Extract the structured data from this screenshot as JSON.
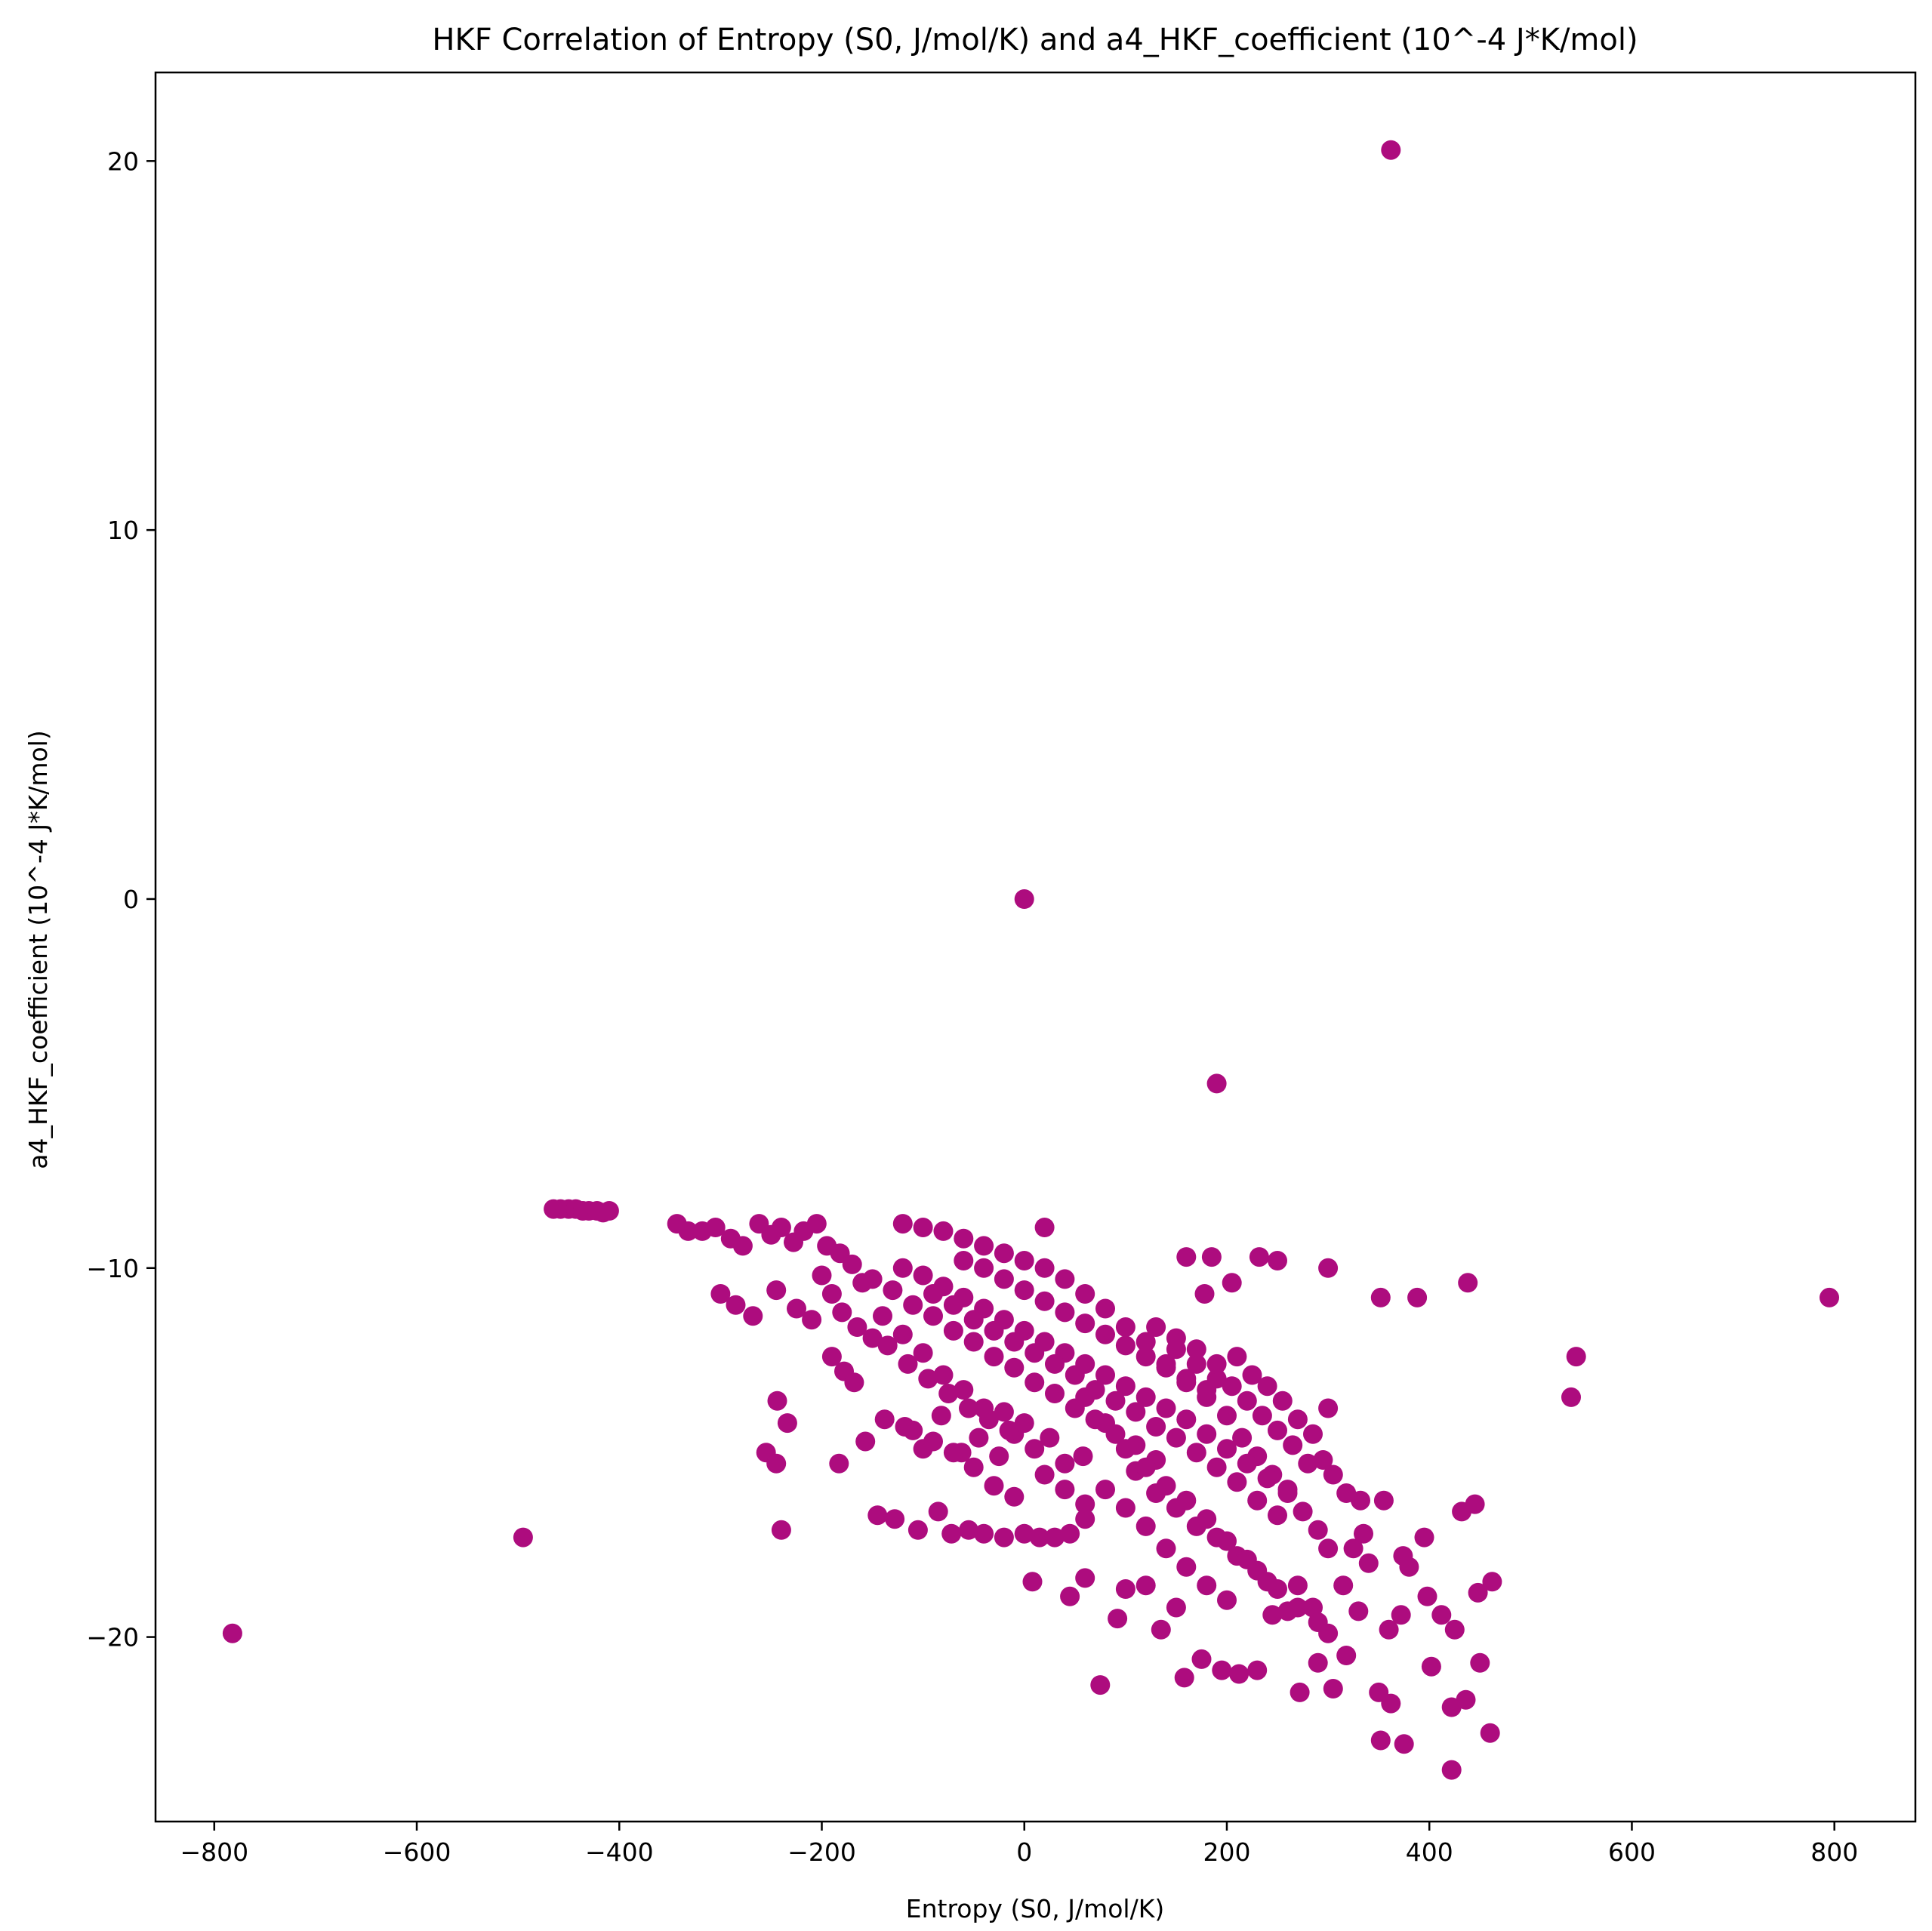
{
  "chart_data": {
    "type": "scatter",
    "title": "HKF Correlation of Entropy (S0, J/mol/K) and a4_HKF_coefficient (10^-4 J*K/mol)",
    "xlabel": "Entropy (S0, J/mol/K)",
    "ylabel": "a4_HKF_coefficient (10^-4 J*K/mol)",
    "xlim": [
      -858,
      880
    ],
    "ylim": [
      -25.0,
      22.4
    ],
    "xticks": [
      -800,
      -600,
      -400,
      -200,
      0,
      200,
      400,
      600,
      800
    ],
    "yticks": [
      -20,
      -10,
      0,
      10,
      20
    ],
    "xtick_labels": [
      "−800",
      "−600",
      "−400",
      "−200",
      "0",
      "200",
      "400",
      "600",
      "800"
    ],
    "ytick_labels": [
      "−20",
      "−10",
      "0",
      "10",
      "20"
    ],
    "grid": false,
    "legend": "none",
    "marker_color": "#ad0c7e",
    "series": [
      {
        "points": [
          [
            362,
            20.3
          ],
          [
            0,
            0.0
          ],
          [
            190,
            -5.0
          ],
          [
            -782,
            -19.9
          ],
          [
            -495,
            -17.3
          ],
          [
            795,
            -10.8
          ],
          [
            545,
            -12.4
          ],
          [
            540,
            -13.5
          ],
          [
            -465,
            -8.4
          ],
          [
            -458,
            -8.4
          ],
          [
            -450,
            -8.4
          ],
          [
            -443,
            -8.4
          ],
          [
            -436,
            -8.45
          ],
          [
            -430,
            -8.45
          ],
          [
            -422,
            -8.45
          ],
          [
            -416,
            -8.5
          ],
          [
            -410,
            -8.45
          ],
          [
            -343,
            -8.8
          ],
          [
            -332,
            -9.0
          ],
          [
            -318,
            -9.0
          ],
          [
            -305,
            -8.9
          ],
          [
            -290,
            -9.2
          ],
          [
            -278,
            -9.4
          ],
          [
            -262,
            -8.8
          ],
          [
            -250,
            -9.1
          ],
          [
            -240,
            -8.9
          ],
          [
            -228,
            -9.3
          ],
          [
            -218,
            -9.0
          ],
          [
            -205,
            -8.8
          ],
          [
            -195,
            -9.4
          ],
          [
            -182,
            -9.6
          ],
          [
            -300,
            -10.7
          ],
          [
            -285,
            -11.0
          ],
          [
            -268,
            -11.3
          ],
          [
            -245,
            -10.6
          ],
          [
            -225,
            -11.1
          ],
          [
            -210,
            -11.4
          ],
          [
            -190,
            -12.4
          ],
          [
            -178,
            -12.8
          ],
          [
            -168,
            -13.1
          ],
          [
            -244,
            -13.6
          ],
          [
            -234,
            -14.2
          ],
          [
            -255,
            -15.0
          ],
          [
            -245,
            -15.3
          ],
          [
            -183,
            -15.3
          ],
          [
            -157,
            -14.7
          ],
          [
            -240,
            -17.1
          ],
          [
            -145,
            -16.7
          ],
          [
            -128,
            -16.8
          ],
          [
            -105,
            -17.1
          ],
          [
            -85,
            -16.6
          ],
          [
            -72,
            -17.2
          ],
          [
            -55,
            -17.1
          ],
          [
            -40,
            -17.2
          ],
          [
            -20,
            -17.3
          ],
          [
            0,
            -17.2
          ],
          [
            15,
            -17.3
          ],
          [
            30,
            -17.3
          ],
          [
            45,
            -17.2
          ],
          [
            60,
            -16.8
          ],
          [
            -138,
            -14.1
          ],
          [
            -118,
            -14.3
          ],
          [
            -100,
            -14.9
          ],
          [
            -82,
            -14.0
          ],
          [
            -62,
            -15.0
          ],
          [
            -45,
            -14.6
          ],
          [
            -25,
            -15.1
          ],
          [
            -10,
            -14.5
          ],
          [
            10,
            -14.9
          ],
          [
            25,
            -14.6
          ],
          [
            40,
            -15.3
          ],
          [
            58,
            -15.1
          ],
          [
            8,
            -18.5
          ],
          [
            45,
            -18.9
          ],
          [
            60,
            -18.4
          ],
          [
            75,
            -21.3
          ],
          [
            92,
            -19.5
          ],
          [
            100,
            -18.7
          ],
          [
            120,
            -18.6
          ],
          [
            135,
            -19.8
          ],
          [
            150,
            -19.2
          ],
          [
            158,
            -21.1
          ],
          [
            175,
            -20.6
          ],
          [
            195,
            -20.9
          ],
          [
            212,
            -21.0
          ],
          [
            230,
            -20.9
          ],
          [
            245,
            -19.4
          ],
          [
            260,
            -19.3
          ],
          [
            272,
            -21.5
          ],
          [
            290,
            -20.7
          ],
          [
            305,
            -21.4
          ],
          [
            318,
            -20.5
          ],
          [
            330,
            -19.3
          ],
          [
            350,
            -21.5
          ],
          [
            352,
            -22.8
          ],
          [
            362,
            -21.8
          ],
          [
            375,
            -22.9
          ],
          [
            402,
            -20.8
          ],
          [
            422,
            -21.9
          ],
          [
            436,
            -21.7
          ],
          [
            450,
            -20.7
          ],
          [
            460,
            -22.6
          ],
          [
            422,
            -23.6
          ],
          [
            380,
            -18.1
          ],
          [
            395,
            -17.3
          ],
          [
            398,
            -18.9
          ],
          [
            412,
            -19.4
          ],
          [
            425,
            -19.8
          ],
          [
            432,
            -16.6
          ],
          [
            445,
            -16.4
          ],
          [
            448,
            -18.8
          ],
          [
            462,
            -18.5
          ],
          [
            355,
            -16.3
          ],
          [
            360,
            -19.8
          ],
          [
            372,
            -19.4
          ],
          [
            374,
            -17.8
          ],
          [
            300,
            -13.8
          ],
          [
            295,
            -15.2
          ],
          [
            305,
            -15.6
          ],
          [
            318,
            -16.1
          ],
          [
            332,
            -16.3
          ],
          [
            335,
            -17.2
          ],
          [
            340,
            -18.0
          ],
          [
            325,
            -17.6
          ],
          [
            315,
            -18.6
          ],
          [
            300,
            -19.9
          ],
          [
            285,
            -19.2
          ],
          [
            270,
            -18.6
          ],
          [
            300,
            -10.0
          ],
          [
            352,
            -10.8
          ],
          [
            388,
            -10.8
          ],
          [
            438,
            -10.4
          ],
          [
            232,
            -9.7
          ],
          [
            250,
            -9.8
          ],
          [
            185,
            -9.7
          ],
          [
            160,
            -9.7
          ],
          [
            205,
            -10.4
          ],
          [
            178,
            -10.7
          ],
          [
            20,
            -8.9
          ],
          [
            120,
            -12.0
          ],
          [
            140,
            -12.6
          ],
          [
            160,
            -13.1
          ],
          [
            180,
            -13.5
          ],
          [
            200,
            -14.0
          ],
          [
            215,
            -14.6
          ],
          [
            230,
            -15.1
          ],
          [
            245,
            -15.6
          ],
          [
            260,
            -16.0
          ],
          [
            275,
            -16.6
          ],
          [
            290,
            -17.1
          ],
          [
            300,
            -17.6
          ],
          [
            100,
            -11.6
          ],
          [
            80,
            -11.1
          ],
          [
            60,
            -10.7
          ],
          [
            40,
            -10.3
          ],
          [
            20,
            -10.0
          ],
          [
            0,
            -9.8
          ],
          [
            -20,
            -9.6
          ],
          [
            -40,
            -9.4
          ],
          [
            -60,
            -9.2
          ],
          [
            -80,
            -9.0
          ],
          [
            -100,
            -8.9
          ],
          [
            -120,
            -8.8
          ],
          [
            210,
            -12.4
          ],
          [
            225,
            -12.9
          ],
          [
            240,
            -13.2
          ],
          [
            255,
            -13.6
          ],
          [
            270,
            -14.1
          ],
          [
            285,
            -14.5
          ],
          [
            150,
            -12.2
          ],
          [
            170,
            -12.6
          ],
          [
            190,
            -13.0
          ],
          [
            -150,
            -10.3
          ],
          [
            -130,
            -10.6
          ],
          [
            -110,
            -11.0
          ],
          [
            -90,
            -11.3
          ],
          [
            -70,
            -11.7
          ],
          [
            -50,
            -12.0
          ],
          [
            -30,
            -12.4
          ],
          [
            -10,
            -12.7
          ],
          [
            10,
            -13.1
          ],
          [
            30,
            -13.4
          ],
          [
            50,
            -13.8
          ],
          [
            70,
            -14.1
          ],
          [
            90,
            -14.5
          ],
          [
            110,
            -14.8
          ],
          [
            130,
            -15.2
          ],
          [
            -170,
            -9.9
          ],
          [
            -160,
            -10.4
          ],
          [
            -140,
            -11.3
          ],
          [
            -120,
            -11.8
          ],
          [
            -100,
            -12.3
          ],
          [
            -80,
            -12.9
          ],
          [
            -60,
            -13.3
          ],
          [
            -40,
            -13.8
          ],
          [
            -20,
            -13.9
          ],
          [
            0,
            -14.2
          ],
          [
            -120,
            -10.0
          ],
          [
            -100,
            -10.2
          ],
          [
            -80,
            -10.5
          ],
          [
            -60,
            -10.8
          ],
          [
            -40,
            -11.1
          ],
          [
            -20,
            -11.4
          ],
          [
            0,
            -11.7
          ],
          [
            20,
            -12.0
          ],
          [
            40,
            -12.3
          ],
          [
            60,
            -12.6
          ],
          [
            80,
            -12.9
          ],
          [
            100,
            -13.2
          ],
          [
            120,
            -13.5
          ],
          [
            140,
            -13.8
          ],
          [
            160,
            -14.1
          ],
          [
            180,
            -14.5
          ],
          [
            200,
            -14.9
          ],
          [
            220,
            -15.3
          ],
          [
            240,
            -15.7
          ],
          [
            260,
            -16.1
          ],
          [
            -90,
            -10.7
          ],
          [
            -70,
            -11.0
          ],
          [
            -50,
            -11.4
          ],
          [
            -30,
            -11.7
          ],
          [
            -10,
            -12.0
          ],
          [
            10,
            -12.3
          ],
          [
            30,
            -12.6
          ],
          [
            50,
            -12.9
          ],
          [
            70,
            -13.3
          ],
          [
            90,
            -13.6
          ],
          [
            110,
            -13.9
          ],
          [
            130,
            -14.3
          ],
          [
            150,
            -14.6
          ],
          [
            170,
            -15.0
          ],
          [
            190,
            -15.4
          ],
          [
            210,
            -15.8
          ],
          [
            230,
            -16.3
          ],
          [
            250,
            -16.7
          ],
          [
            -60,
            -9.8
          ],
          [
            -40,
            -10.0
          ],
          [
            -20,
            -10.3
          ],
          [
            0,
            -10.6
          ],
          [
            20,
            -10.9
          ],
          [
            40,
            -11.2
          ],
          [
            60,
            -11.5
          ],
          [
            80,
            -11.8
          ],
          [
            100,
            -12.1
          ],
          [
            120,
            -12.4
          ],
          [
            140,
            -12.7
          ],
          [
            160,
            -13.0
          ],
          [
            180,
            -13.3
          ],
          [
            110,
            -15.5
          ],
          [
            130,
            -16.1
          ],
          [
            150,
            -16.5
          ],
          [
            170,
            -17.0
          ],
          [
            190,
            -17.3
          ],
          [
            210,
            -17.8
          ],
          [
            230,
            -18.2
          ],
          [
            250,
            -18.7
          ],
          [
            270,
            -19.2
          ],
          [
            290,
            -19.6
          ],
          [
            60,
            -13.5
          ],
          [
            80,
            -14.2
          ],
          [
            100,
            -14.9
          ],
          [
            120,
            -15.4
          ],
          [
            140,
            -15.9
          ],
          [
            160,
            -16.3
          ],
          [
            180,
            -16.8
          ],
          [
            200,
            -17.4
          ],
          [
            220,
            -17.9
          ],
          [
            240,
            -18.5
          ],
          [
            -200,
            -10.2
          ],
          [
            -190,
            -10.7
          ],
          [
            -180,
            -11.2
          ],
          [
            -165,
            -11.6
          ],
          [
            -150,
            -11.9
          ],
          [
            -135,
            -12.1
          ],
          [
            -115,
            -12.6
          ],
          [
            -95,
            -13.0
          ],
          [
            -75,
            -13.4
          ],
          [
            -55,
            -13.8
          ],
          [
            -35,
            -14.1
          ],
          [
            -15,
            -14.4
          ],
          [
            130,
            -11.6
          ],
          [
            150,
            -11.9
          ],
          [
            170,
            -12.2
          ],
          [
            190,
            -12.6
          ],
          [
            205,
            -13.2
          ],
          [
            220,
            -13.6
          ],
          [
            235,
            -14.0
          ],
          [
            250,
            -14.4
          ],
          [
            265,
            -14.8
          ],
          [
            280,
            -15.3
          ],
          [
            20,
            -15.6
          ],
          [
            40,
            -16.0
          ],
          [
            60,
            -16.4
          ],
          [
            80,
            -16.0
          ],
          [
            100,
            -16.5
          ],
          [
            120,
            -17.0
          ],
          [
            140,
            -17.6
          ],
          [
            160,
            -18.1
          ],
          [
            180,
            -18.6
          ],
          [
            200,
            -19.0
          ],
          [
            -30,
            -15.9
          ],
          [
            -10,
            -16.2
          ],
          [
            -50,
            -15.4
          ],
          [
            -70,
            -15.0
          ],
          [
            -90,
            -14.7
          ],
          [
            -110,
            -14.4
          ]
        ]
      }
    ]
  }
}
